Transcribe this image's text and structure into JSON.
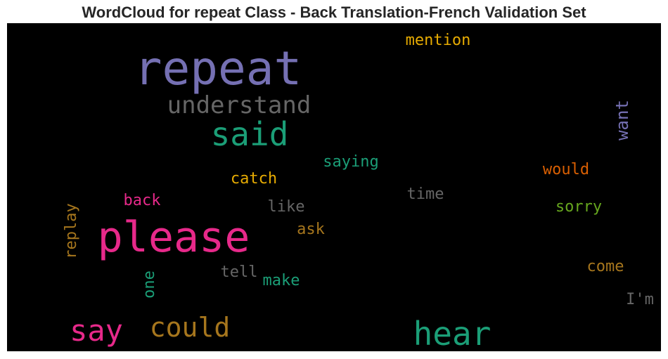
{
  "title": "WordCloud for repeat Class - Back Translation-French Validation Set",
  "words": [
    {
      "text": "repeat",
      "color": "#7570b3"
    },
    {
      "text": "please",
      "color": "#e7298a"
    },
    {
      "text": "hear",
      "color": "#1b9e77"
    },
    {
      "text": "said",
      "color": "#1b9e77"
    },
    {
      "text": "say",
      "color": "#e7298a"
    },
    {
      "text": "could",
      "color": "#a6761d"
    },
    {
      "text": "understand",
      "color": "#666666"
    },
    {
      "text": "mention",
      "color": "#e6ab02"
    },
    {
      "text": "want",
      "color": "#7570b3"
    },
    {
      "text": "saying",
      "color": "#1b9e77"
    },
    {
      "text": "catch",
      "color": "#e6ab02"
    },
    {
      "text": "would",
      "color": "#d95f02"
    },
    {
      "text": "time",
      "color": "#666666"
    },
    {
      "text": "back",
      "color": "#e7298a"
    },
    {
      "text": "like",
      "color": "#666666"
    },
    {
      "text": "sorry",
      "color": "#66a61e"
    },
    {
      "text": "replay",
      "color": "#a6761d"
    },
    {
      "text": "ask",
      "color": "#a6761d"
    },
    {
      "text": "tell",
      "color": "#666666"
    },
    {
      "text": "make",
      "color": "#1b9e77"
    },
    {
      "text": "come",
      "color": "#a6761d"
    },
    {
      "text": "one",
      "color": "#1b9e77"
    },
    {
      "text": "I'm",
      "color": "#666666"
    }
  ]
}
